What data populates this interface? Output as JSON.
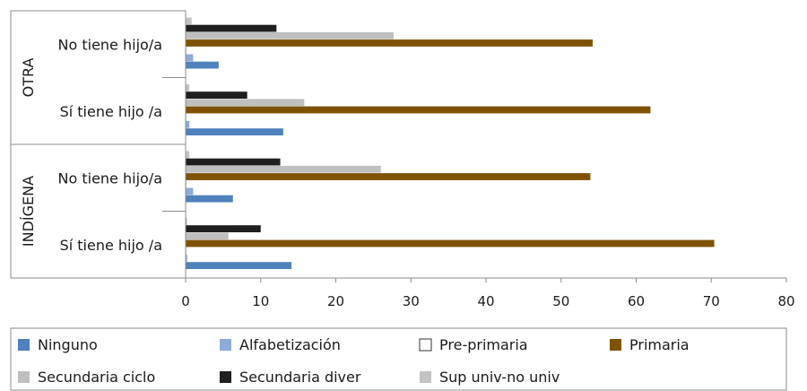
{
  "chart_data": {
    "type": "bar",
    "orientation": "horizontal",
    "groups": [
      {
        "label": "OTRA",
        "categories": [
          "No tiene hijo/a",
          "Sí tiene hijo  /a"
        ]
      },
      {
        "label": "INDÍGENA",
        "categories": [
          "No tiene hijo/a",
          "Sí tiene hijo  /a"
        ]
      }
    ],
    "categories": [
      "No tiene hijo/a",
      "Sí tiene hijo  /a",
      "No tiene hijo/a",
      "Sí tiene hijo  /a"
    ],
    "xlim": [
      0,
      80
    ],
    "xticks": [
      "0",
      "10",
      "20",
      "30",
      "40",
      "50",
      "60",
      "70",
      "80"
    ],
    "series": [
      {
        "name": "Ninguno",
        "color": "#4f81bd",
        "values": [
          4.4,
          13.0,
          6.3,
          14.1
        ]
      },
      {
        "name": "Alfabetización",
        "color": "#8eaadb",
        "values": [
          1.0,
          0.5,
          1.0,
          0.2
        ]
      },
      {
        "name": "Pre-primaria",
        "color": "#ffffff",
        "values": [
          0.1,
          0.1,
          0.1,
          0.1
        ]
      },
      {
        "name": "Primaria",
        "color": "#7f5200",
        "values": [
          54.2,
          61.9,
          53.9,
          70.4
        ]
      },
      {
        "name": "Secundaria ciclo",
        "color": "#bfbfbf",
        "values": [
          27.7,
          15.8,
          26.0,
          5.7
        ]
      },
      {
        "name": "Secundaria diver",
        "color": "#1f1f1f",
        "values": [
          12.1,
          8.2,
          12.6,
          10.0
        ]
      },
      {
        "name": "Sup univ-no univ",
        "color": "#c3c3c3",
        "values": [
          0.8,
          0.5,
          0.5,
          0.2
        ]
      }
    ],
    "legend_position": "bottom",
    "grid": false
  }
}
